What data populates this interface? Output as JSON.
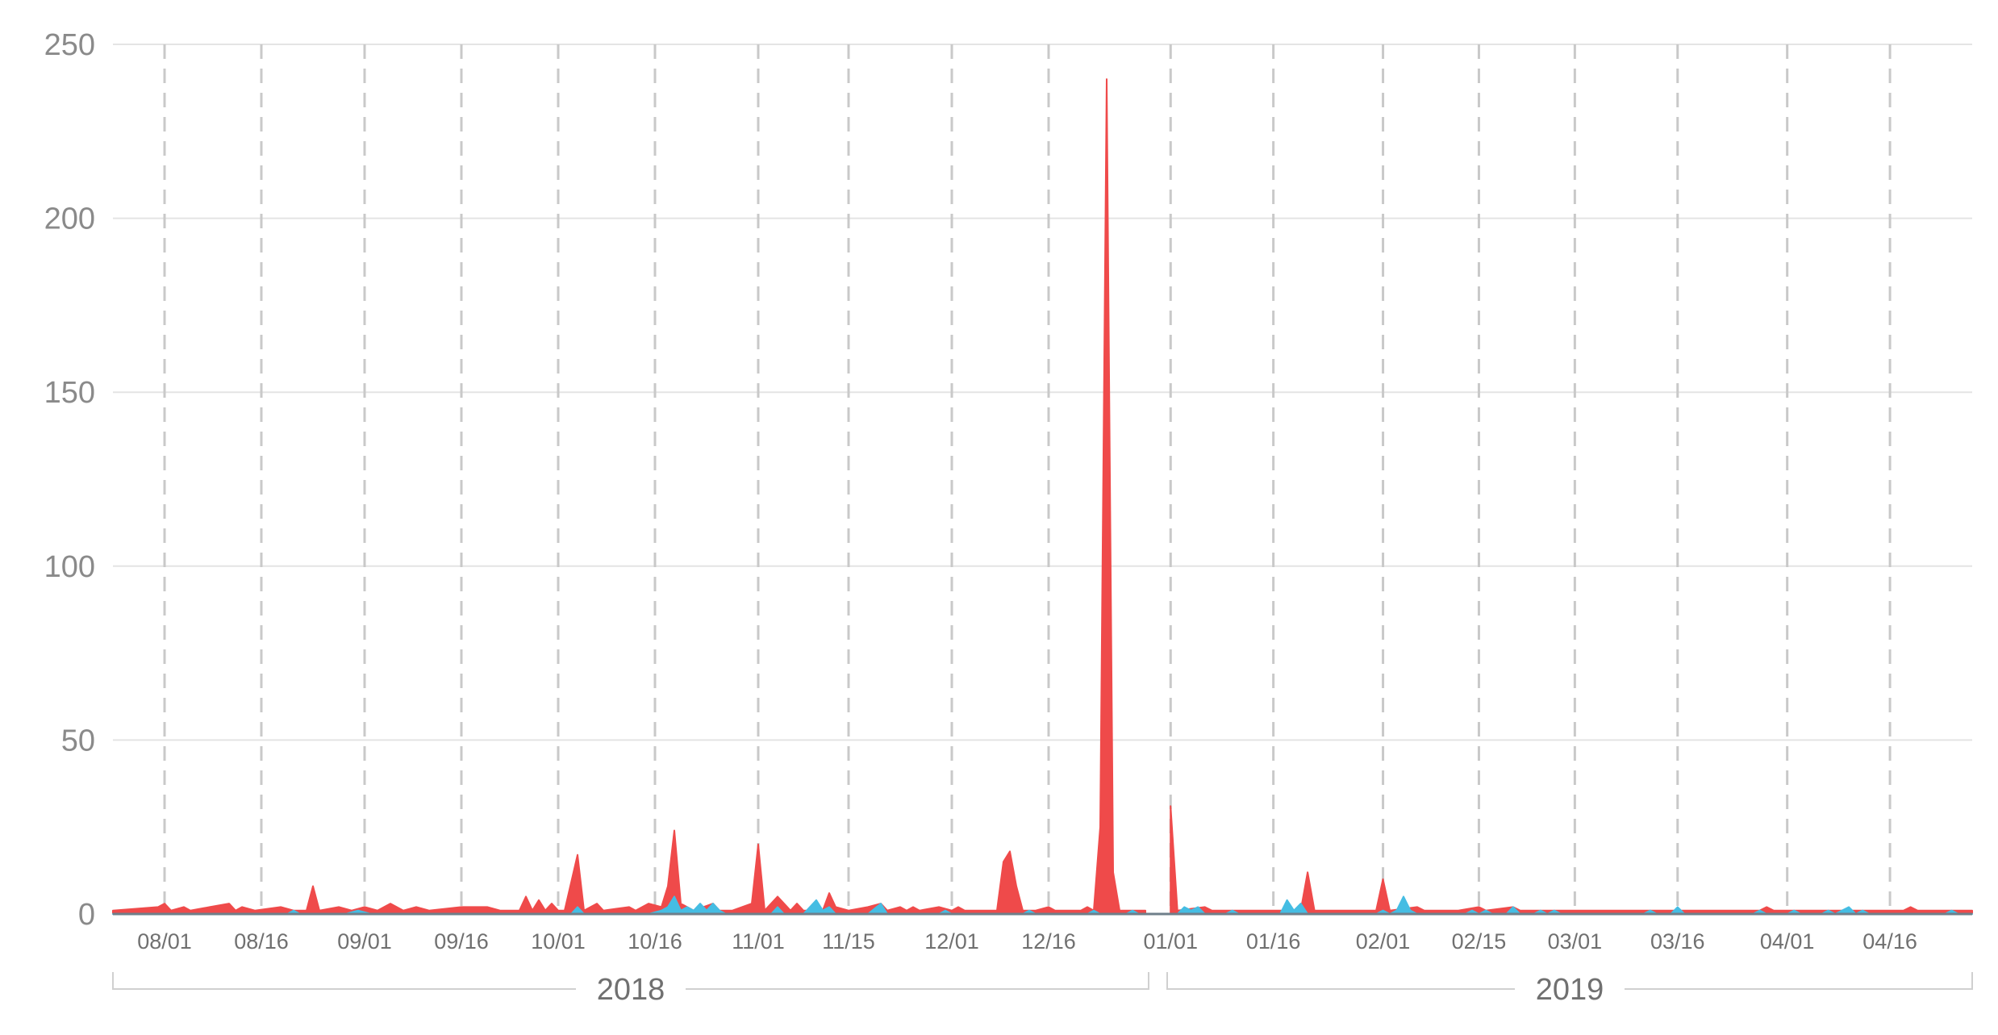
{
  "colors": {
    "series_red": "#ef4a4a",
    "series_blue": "#45bde3",
    "grid": "#e4e4e4",
    "dash": "#c9c9c9",
    "axis_text": "#8a8a8a"
  },
  "chart_data": {
    "type": "area",
    "title": "",
    "xlabel": "",
    "ylabel": "",
    "ylim": [
      0,
      250
    ],
    "y_ticks": [
      "0",
      "50",
      "100",
      "150",
      "200",
      "250"
    ],
    "x_range": [
      "2018-07-24",
      "2019-04-28"
    ],
    "x_ticks": [
      {
        "date": "2018-08-01",
        "label": "08/01"
      },
      {
        "date": "2018-08-16",
        "label": "08/16"
      },
      {
        "date": "2018-09-01",
        "label": "09/01"
      },
      {
        "date": "2018-09-16",
        "label": "09/16"
      },
      {
        "date": "2018-10-01",
        "label": "10/01"
      },
      {
        "date": "2018-10-16",
        "label": "10/16"
      },
      {
        "date": "2018-11-01",
        "label": "11/01"
      },
      {
        "date": "2018-11-15",
        "label": "11/15"
      },
      {
        "date": "2018-12-01",
        "label": "12/01"
      },
      {
        "date": "2018-12-16",
        "label": "12/16"
      },
      {
        "date": "2019-01-01",
        "label": "01/01"
      },
      {
        "date": "2019-01-16",
        "label": "01/16"
      },
      {
        "date": "2019-02-01",
        "label": "02/01"
      },
      {
        "date": "2019-02-15",
        "label": "02/15"
      },
      {
        "date": "2019-03-01",
        "label": "03/01"
      },
      {
        "date": "2019-03-16",
        "label": "03/16"
      },
      {
        "date": "2019-04-01",
        "label": "04/01"
      },
      {
        "date": "2019-04-16",
        "label": "04/16"
      }
    ],
    "year_groups": [
      {
        "label": "2018",
        "start": "2018-07-24",
        "end": "2018-12-31"
      },
      {
        "label": "2019",
        "start": "2019-01-01",
        "end": "2019-04-28"
      }
    ],
    "grid": true,
    "series": [
      {
        "color": "#ef4a4a",
        "points": [
          [
            "2018-07-24",
            1
          ],
          [
            "2018-07-31",
            2
          ],
          [
            "2018-08-01",
            3
          ],
          [
            "2018-08-02",
            1
          ],
          [
            "2018-08-04",
            2
          ],
          [
            "2018-08-05",
            1
          ],
          [
            "2018-08-08",
            2
          ],
          [
            "2018-08-11",
            3
          ],
          [
            "2018-08-12",
            1
          ],
          [
            "2018-08-13",
            2
          ],
          [
            "2018-08-15",
            1
          ],
          [
            "2018-08-19",
            2
          ],
          [
            "2018-08-21",
            1
          ],
          [
            "2018-08-23",
            1
          ],
          [
            "2018-08-24",
            8
          ],
          [
            "2018-08-25",
            1
          ],
          [
            "2018-08-28",
            2
          ],
          [
            "2018-08-30",
            1
          ],
          [
            "2018-09-01",
            2
          ],
          [
            "2018-09-03",
            1
          ],
          [
            "2018-09-05",
            3
          ],
          [
            "2018-09-07",
            1
          ],
          [
            "2018-09-09",
            2
          ],
          [
            "2018-09-11",
            1
          ],
          [
            "2018-09-16",
            2
          ],
          [
            "2018-09-20",
            2
          ],
          [
            "2018-09-22",
            1
          ],
          [
            "2018-09-25",
            1
          ],
          [
            "2018-09-26",
            5
          ],
          [
            "2018-09-27",
            1
          ],
          [
            "2018-09-28",
            4
          ],
          [
            "2018-09-29",
            1
          ],
          [
            "2018-09-30",
            3
          ],
          [
            "2018-10-01",
            1
          ],
          [
            "2018-10-02",
            1
          ],
          [
            "2018-10-04",
            17
          ],
          [
            "2018-10-05",
            1
          ],
          [
            "2018-10-07",
            3
          ],
          [
            "2018-10-08",
            1
          ],
          [
            "2018-10-12",
            2
          ],
          [
            "2018-10-13",
            1
          ],
          [
            "2018-10-15",
            3
          ],
          [
            "2018-10-17",
            2
          ],
          [
            "2018-10-18",
            8
          ],
          [
            "2018-10-19",
            24
          ],
          [
            "2018-10-20",
            3
          ],
          [
            "2018-10-21",
            2
          ],
          [
            "2018-10-22",
            1
          ],
          [
            "2018-10-25",
            3
          ],
          [
            "2018-10-26",
            1
          ],
          [
            "2018-10-28",
            1
          ],
          [
            "2018-10-31",
            3
          ],
          [
            "2018-11-01",
            20
          ],
          [
            "2018-11-02",
            1
          ],
          [
            "2018-11-04",
            5
          ],
          [
            "2018-11-05",
            3
          ],
          [
            "2018-11-06",
            1
          ],
          [
            "2018-11-07",
            3
          ],
          [
            "2018-11-08",
            1
          ],
          [
            "2018-11-11",
            1
          ],
          [
            "2018-11-12",
            6
          ],
          [
            "2018-11-13",
            2
          ],
          [
            "2018-11-15",
            1
          ],
          [
            "2018-11-18",
            2
          ],
          [
            "2018-11-20",
            3
          ],
          [
            "2018-11-21",
            1
          ],
          [
            "2018-11-23",
            2
          ],
          [
            "2018-11-24",
            1
          ],
          [
            "2018-11-25",
            2
          ],
          [
            "2018-11-26",
            1
          ],
          [
            "2018-11-29",
            2
          ],
          [
            "2018-12-01",
            1
          ],
          [
            "2018-12-02",
            2
          ],
          [
            "2018-12-03",
            1
          ],
          [
            "2018-12-08",
            1
          ],
          [
            "2018-12-09",
            15
          ],
          [
            "2018-12-10",
            18
          ],
          [
            "2018-12-11",
            8
          ],
          [
            "2018-12-12",
            1
          ],
          [
            "2018-12-14",
            1
          ],
          [
            "2018-12-16",
            2
          ],
          [
            "2018-12-17",
            1
          ],
          [
            "2018-12-21",
            1
          ],
          [
            "2018-12-22",
            2
          ],
          [
            "2018-12-23",
            1
          ],
          [
            "2018-12-24",
            25
          ],
          [
            "2018-12-25",
            240
          ],
          [
            "2018-12-26",
            12
          ],
          [
            "2018-12-27",
            1
          ],
          [
            "2018-12-30",
            1
          ],
          [
            "2018-12-31",
            1
          ],
          [
            "2019-01-01",
            31
          ],
          [
            "2019-01-02",
            1
          ],
          [
            "2019-01-06",
            2
          ],
          [
            "2019-01-07",
            1
          ],
          [
            "2019-01-16",
            1
          ],
          [
            "2019-01-20",
            1
          ],
          [
            "2019-01-21",
            12
          ],
          [
            "2019-01-22",
            1
          ],
          [
            "2019-01-31",
            1
          ],
          [
            "2019-02-01",
            10
          ],
          [
            "2019-02-02",
            1
          ],
          [
            "2019-02-06",
            2
          ],
          [
            "2019-02-07",
            1
          ],
          [
            "2019-02-12",
            1
          ],
          [
            "2019-02-15",
            2
          ],
          [
            "2019-02-16",
            1
          ],
          [
            "2019-02-20",
            2
          ],
          [
            "2019-02-21",
            1
          ],
          [
            "2019-03-28",
            1
          ],
          [
            "2019-03-29",
            2
          ],
          [
            "2019-03-30",
            1
          ],
          [
            "2019-04-18",
            1
          ],
          [
            "2019-04-19",
            2
          ],
          [
            "2019-04-20",
            1
          ],
          [
            "2019-04-28",
            1
          ]
        ]
      },
      {
        "color": "#45bde3",
        "points": [
          [
            "2018-07-24",
            0
          ],
          [
            "2018-08-20",
            0
          ],
          [
            "2018-08-21",
            1
          ],
          [
            "2018-08-22",
            0
          ],
          [
            "2018-08-29",
            0
          ],
          [
            "2018-08-31",
            1
          ],
          [
            "2018-09-02",
            0
          ],
          [
            "2018-10-03",
            0
          ],
          [
            "2018-10-04",
            2
          ],
          [
            "2018-10-05",
            0
          ],
          [
            "2018-10-15",
            0
          ],
          [
            "2018-10-17",
            1
          ],
          [
            "2018-10-18",
            2
          ],
          [
            "2018-10-19",
            5
          ],
          [
            "2018-10-20",
            1
          ],
          [
            "2018-10-21",
            2
          ],
          [
            "2018-10-22",
            1
          ],
          [
            "2018-10-23",
            3
          ],
          [
            "2018-10-24",
            1
          ],
          [
            "2018-10-25",
            3
          ],
          [
            "2018-10-26",
            1
          ],
          [
            "2018-10-27",
            0
          ],
          [
            "2018-11-03",
            0
          ],
          [
            "2018-11-04",
            2
          ],
          [
            "2018-11-05",
            0
          ],
          [
            "2018-11-08",
            0
          ],
          [
            "2018-11-10",
            4
          ],
          [
            "2018-11-11",
            1
          ],
          [
            "2018-11-12",
            2
          ],
          [
            "2018-11-13",
            0
          ],
          [
            "2018-11-18",
            0
          ],
          [
            "2018-11-20",
            3
          ],
          [
            "2018-11-21",
            0
          ],
          [
            "2018-11-29",
            0
          ],
          [
            "2018-11-30",
            1
          ],
          [
            "2018-12-01",
            0
          ],
          [
            "2018-12-12",
            0
          ],
          [
            "2018-12-13",
            1
          ],
          [
            "2018-12-14",
            0
          ],
          [
            "2018-12-22",
            0
          ],
          [
            "2018-12-23",
            1
          ],
          [
            "2018-12-24",
            0
          ],
          [
            "2018-12-28",
            0
          ],
          [
            "2018-12-29",
            1
          ],
          [
            "2018-12-30",
            0
          ],
          [
            "2019-01-02",
            0
          ],
          [
            "2019-01-03",
            2
          ],
          [
            "2019-01-04",
            1
          ],
          [
            "2019-01-05",
            2
          ],
          [
            "2019-01-06",
            0
          ],
          [
            "2019-01-09",
            0
          ],
          [
            "2019-01-10",
            1
          ],
          [
            "2019-01-11",
            0
          ],
          [
            "2019-01-17",
            0
          ],
          [
            "2019-01-18",
            4
          ],
          [
            "2019-01-19",
            1
          ],
          [
            "2019-01-20",
            3
          ],
          [
            "2019-01-21",
            0
          ],
          [
            "2019-01-31",
            0
          ],
          [
            "2019-02-01",
            1
          ],
          [
            "2019-02-02",
            0
          ],
          [
            "2019-02-03",
            1
          ],
          [
            "2019-02-04",
            5
          ],
          [
            "2019-02-05",
            1
          ],
          [
            "2019-02-06",
            0
          ],
          [
            "2019-02-13",
            0
          ],
          [
            "2019-02-14",
            1
          ],
          [
            "2019-02-15",
            0
          ],
          [
            "2019-02-16",
            1
          ],
          [
            "2019-02-17",
            0
          ],
          [
            "2019-02-19",
            0
          ],
          [
            "2019-02-20",
            2
          ],
          [
            "2019-02-21",
            0
          ],
          [
            "2019-02-23",
            0
          ],
          [
            "2019-02-24",
            1
          ],
          [
            "2019-02-25",
            0
          ],
          [
            "2019-02-26",
            1
          ],
          [
            "2019-02-27",
            0
          ],
          [
            "2019-03-11",
            0
          ],
          [
            "2019-03-12",
            1
          ],
          [
            "2019-03-13",
            0
          ],
          [
            "2019-03-15",
            0
          ],
          [
            "2019-03-16",
            2
          ],
          [
            "2019-03-17",
            0
          ],
          [
            "2019-03-27",
            0
          ],
          [
            "2019-03-28",
            1
          ],
          [
            "2019-03-29",
            0
          ],
          [
            "2019-04-01",
            0
          ],
          [
            "2019-04-02",
            1
          ],
          [
            "2019-04-03",
            0
          ],
          [
            "2019-04-06",
            0
          ],
          [
            "2019-04-07",
            1
          ],
          [
            "2019-04-08",
            0
          ],
          [
            "2019-04-09",
            1
          ],
          [
            "2019-04-10",
            2
          ],
          [
            "2019-04-11",
            0
          ],
          [
            "2019-04-12",
            1
          ],
          [
            "2019-04-13",
            0
          ],
          [
            "2019-04-24",
            0
          ],
          [
            "2019-04-25",
            1
          ],
          [
            "2019-04-26",
            0
          ],
          [
            "2019-04-28",
            0
          ]
        ]
      }
    ]
  }
}
